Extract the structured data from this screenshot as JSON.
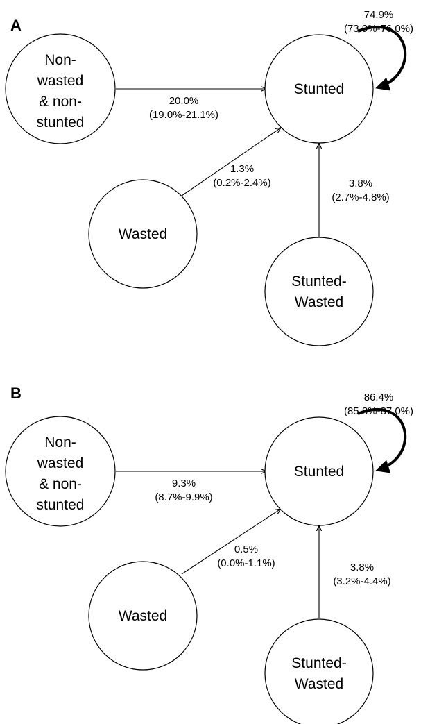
{
  "panels": [
    {
      "label": "A",
      "nodes": {
        "non_wasted": [
          "Non-",
          "wasted",
          "& non-",
          "stunted"
        ],
        "stunted": [
          "Stunted"
        ],
        "wasted": [
          "Wasted"
        ],
        "stunted_wasted": [
          "Stunted-",
          "Wasted"
        ]
      },
      "edges": {
        "non_wasted_to_stunted": [
          "20.0%",
          "(19.0%-21.1%)"
        ],
        "wasted_to_stunted": [
          "1.3%",
          "(0.2%-2.4%)"
        ],
        "stunted_wasted_to_stunted": [
          "3.8%",
          "(2.7%-4.8%)"
        ],
        "stunted_self": [
          "74.9%",
          "(73.9%-76.0%)"
        ]
      }
    },
    {
      "label": "B",
      "nodes": {
        "non_wasted": [
          "Non-",
          "wasted",
          "& non-",
          "stunted"
        ],
        "stunted": [
          "Stunted"
        ],
        "wasted": [
          "Wasted"
        ],
        "stunted_wasted": [
          "Stunted-",
          "Wasted"
        ]
      },
      "edges": {
        "non_wasted_to_stunted": [
          "9.3%",
          "(8.7%-9.9%)"
        ],
        "wasted_to_stunted": [
          "0.5%",
          "(0.0%-1.1%)"
        ],
        "stunted_wasted_to_stunted": [
          "3.8%",
          "(3.2%-4.4%)"
        ],
        "stunted_self": [
          "86.4%",
          "(85.8%-87.0%)"
        ]
      }
    }
  ]
}
